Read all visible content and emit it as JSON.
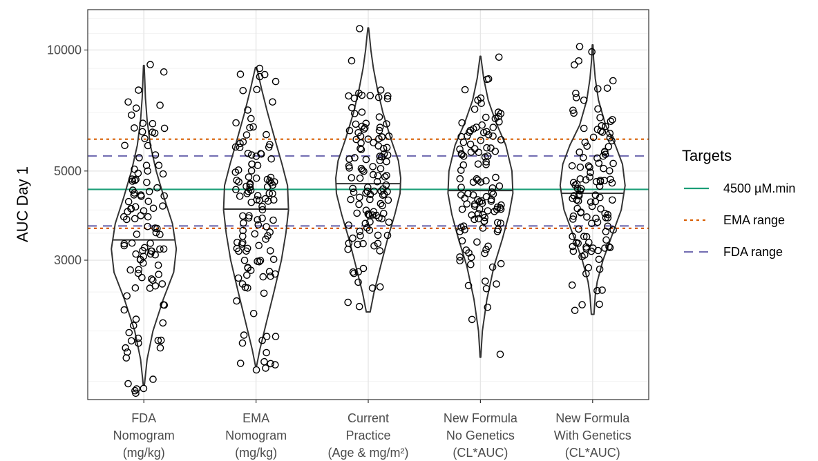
{
  "chart_data": {
    "type": "violin",
    "ylabel": "AUC Day 1",
    "y_scale": "log",
    "ylim": [
      1350,
      12600
    ],
    "y_ticks": [
      3000,
      5000,
      10000
    ],
    "y_minor_ticks": [
      1500,
      2000,
      2500,
      3500,
      4000,
      4500,
      6000,
      7000,
      8000,
      9000,
      11000,
      12000
    ],
    "grid": true,
    "categories": [
      [
        "FDA",
        "Nomogram",
        "(mg/kg)"
      ],
      [
        "EMA",
        "Nomogram",
        "(mg/kg)"
      ],
      [
        "Current",
        "Practice",
        "(Age & mg/m²)"
      ],
      [
        "New Formula",
        "No Genetics",
        "(CL*AUC)"
      ],
      [
        "New Formula",
        "With Genetics",
        "(CL*AUC)"
      ]
    ],
    "violins": [
      {
        "min": 1470,
        "max": 9150,
        "median": 3370,
        "profile": [
          [
            1470,
            0.02
          ],
          [
            1700,
            0.1
          ],
          [
            2000,
            0.28
          ],
          [
            2400,
            0.6
          ],
          [
            2800,
            0.92
          ],
          [
            3200,
            1.0
          ],
          [
            3700,
            0.88
          ],
          [
            4300,
            0.62
          ],
          [
            5000,
            0.38
          ],
          [
            5800,
            0.2
          ],
          [
            6700,
            0.1
          ],
          [
            7600,
            0.05
          ],
          [
            8400,
            0.03
          ],
          [
            9150,
            0.01
          ]
        ]
      },
      {
        "min": 1640,
        "max": 9050,
        "median": 4020,
        "profile": [
          [
            1640,
            0.02
          ],
          [
            1800,
            0.12
          ],
          [
            2100,
            0.32
          ],
          [
            2500,
            0.55
          ],
          [
            3000,
            0.78
          ],
          [
            3500,
            0.92
          ],
          [
            4000,
            1.0
          ],
          [
            4600,
            0.97
          ],
          [
            5200,
            0.8
          ],
          [
            6000,
            0.58
          ],
          [
            7000,
            0.35
          ],
          [
            8000,
            0.17
          ],
          [
            9050,
            0.02
          ]
        ]
      },
      {
        "min": 2230,
        "max": 11350,
        "median": 4650,
        "profile": [
          [
            2230,
            0.06
          ],
          [
            2500,
            0.18
          ],
          [
            2900,
            0.38
          ],
          [
            3400,
            0.6
          ],
          [
            3900,
            0.82
          ],
          [
            4400,
            0.98
          ],
          [
            4800,
            1.0
          ],
          [
            5300,
            0.93
          ],
          [
            6000,
            0.7
          ],
          [
            7000,
            0.45
          ],
          [
            8000,
            0.28
          ],
          [
            9000,
            0.16
          ],
          [
            10000,
            0.08
          ],
          [
            10800,
            0.04
          ],
          [
            11350,
            0.01
          ]
        ]
      },
      {
        "min": 1720,
        "max": 9650,
        "median": 4470,
        "profile": [
          [
            1720,
            0.01
          ],
          [
            2000,
            0.06
          ],
          [
            2400,
            0.2
          ],
          [
            2900,
            0.42
          ],
          [
            3400,
            0.68
          ],
          [
            3900,
            0.88
          ],
          [
            4400,
            1.0
          ],
          [
            5000,
            0.97
          ],
          [
            5800,
            0.78
          ],
          [
            6600,
            0.48
          ],
          [
            7500,
            0.24
          ],
          [
            8500,
            0.1
          ],
          [
            9650,
            0.01
          ]
        ]
      },
      {
        "min": 2200,
        "max": 10300,
        "median": 4400,
        "profile": [
          [
            2200,
            0.04
          ],
          [
            2450,
            0.08
          ],
          [
            2650,
            0.14
          ],
          [
            3000,
            0.32
          ],
          [
            3500,
            0.62
          ],
          [
            4000,
            0.88
          ],
          [
            4600,
            1.0
          ],
          [
            5200,
            0.92
          ],
          [
            5800,
            0.7
          ],
          [
            6500,
            0.4
          ],
          [
            7500,
            0.18
          ],
          [
            8500,
            0.08
          ],
          [
            9500,
            0.03
          ],
          [
            10300,
            0.01
          ]
        ]
      }
    ],
    "n_points_per_group": [
      110,
      120,
      120,
      120,
      120
    ],
    "point_median": [
      3400,
      4000,
      4700,
      4400,
      4500
    ],
    "point_spread_log": [
      0.36,
      0.34,
      0.28,
      0.27,
      0.25
    ],
    "point_range": [
      [
        1400,
        9200
      ],
      [
        1600,
        9000
      ],
      [
        2300,
        11300
      ],
      [
        1750,
        9600
      ],
      [
        2250,
        10200
      ]
    ],
    "reference_lines": [
      {
        "name": "4500 µM.min",
        "values": [
          4500
        ],
        "color": "#1b9e77",
        "dash": "solid"
      },
      {
        "name": "EMA range",
        "values": [
          3600,
          6000
        ],
        "color": "#d95f02",
        "dash": "dotted"
      },
      {
        "name": "FDA range",
        "values": [
          3650,
          5450
        ],
        "color": "#7570b3",
        "dash": "dashed"
      }
    ]
  },
  "legend": {
    "title": "Targets",
    "items": [
      {
        "label": "4500 µM.min",
        "color": "#1b9e77",
        "dash": "solid"
      },
      {
        "label": "EMA range",
        "color": "#d95f02",
        "dash": "dotted"
      },
      {
        "label": "FDA range",
        "color": "#7570b3",
        "dash": "dashed"
      }
    ]
  }
}
